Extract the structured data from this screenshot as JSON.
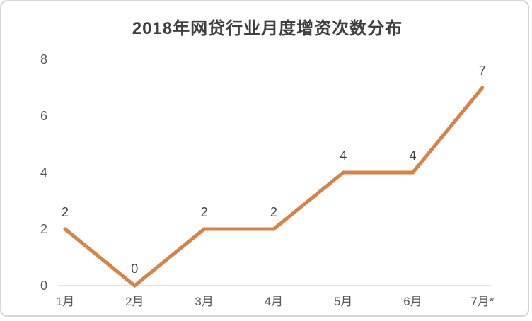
{
  "chart_data": {
    "type": "line",
    "title": "2018年网贷行业月度增资次数分布",
    "categories": [
      "1月",
      "2月",
      "3月",
      "4月",
      "5月",
      "6月",
      "7月*"
    ],
    "values": [
      2,
      0,
      2,
      2,
      4,
      4,
      7
    ],
    "yticks": [
      0,
      2,
      4,
      6,
      8
    ],
    "ylim": [
      0,
      8
    ],
    "xlabel": "",
    "ylabel": "",
    "grid": false,
    "legend": "none",
    "data_labels_shown": true,
    "line_color": "#DA8146",
    "data_label_color": "#404040",
    "tick_label_color": "#595959",
    "axis_line_color": "#D9D9D9",
    "title_color": "#3F3F3F",
    "frame_border_color": "#D6D6D6"
  }
}
